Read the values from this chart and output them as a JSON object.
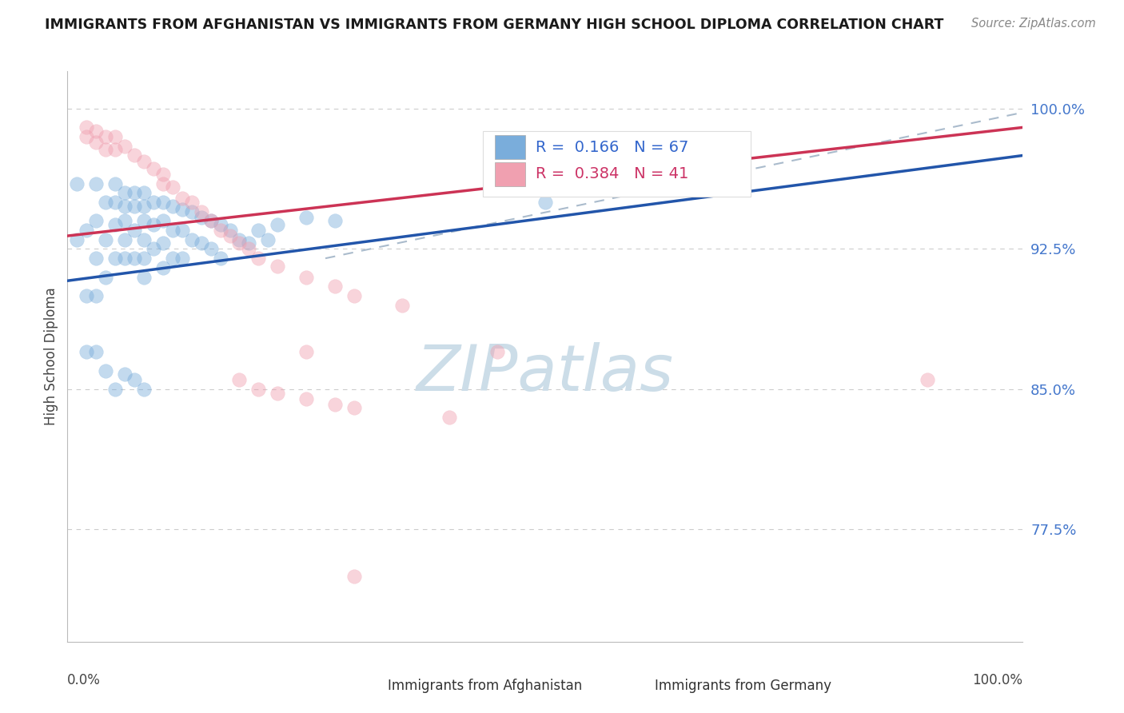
{
  "title": "IMMIGRANTS FROM AFGHANISTAN VS IMMIGRANTS FROM GERMANY HIGH SCHOOL DIPLOMA CORRELATION CHART",
  "source": "Source: ZipAtlas.com",
  "ylabel": "High School Diploma",
  "xlim": [
    0.0,
    1.0
  ],
  "ylim": [
    0.715,
    1.02
  ],
  "ytick_vals": [
    0.775,
    0.85,
    0.925,
    1.0
  ],
  "ytick_labels": [
    "77.5%",
    "85.0%",
    "92.5%",
    "100.0%"
  ],
  "legend_R_blue": "0.166",
  "legend_N_blue": "67",
  "legend_R_pink": "0.384",
  "legend_N_pink": "41",
  "blue_color": "#7aaddb",
  "pink_color": "#f0a0b0",
  "blue_line_color": "#2255aa",
  "pink_line_color": "#cc3355",
  "dash_color": "#aabbcc",
  "watermark": "ZIPatlas",
  "watermark_color": "#ccdde8",
  "blue_scatter_x": [
    0.01,
    0.01,
    0.02,
    0.02,
    0.02,
    0.03,
    0.03,
    0.03,
    0.03,
    0.04,
    0.04,
    0.04,
    0.05,
    0.05,
    0.05,
    0.05,
    0.06,
    0.06,
    0.06,
    0.06,
    0.06,
    0.07,
    0.07,
    0.07,
    0.07,
    0.08,
    0.08,
    0.08,
    0.08,
    0.08,
    0.08,
    0.09,
    0.09,
    0.09,
    0.1,
    0.1,
    0.1,
    0.1,
    0.11,
    0.11,
    0.11,
    0.12,
    0.12,
    0.12,
    0.13,
    0.13,
    0.14,
    0.14,
    0.15,
    0.15,
    0.16,
    0.16,
    0.17,
    0.18,
    0.19,
    0.2,
    0.21,
    0.22,
    0.25,
    0.28,
    0.03,
    0.04,
    0.05,
    0.06,
    0.07,
    0.08,
    0.5
  ],
  "blue_scatter_y": [
    0.93,
    0.96,
    0.935,
    0.9,
    0.87,
    0.96,
    0.94,
    0.92,
    0.9,
    0.95,
    0.93,
    0.91,
    0.96,
    0.95,
    0.938,
    0.92,
    0.955,
    0.948,
    0.94,
    0.93,
    0.92,
    0.955,
    0.948,
    0.935,
    0.92,
    0.955,
    0.948,
    0.94,
    0.93,
    0.92,
    0.91,
    0.95,
    0.938,
    0.925,
    0.95,
    0.94,
    0.928,
    0.915,
    0.948,
    0.935,
    0.92,
    0.946,
    0.935,
    0.92,
    0.945,
    0.93,
    0.942,
    0.928,
    0.94,
    0.925,
    0.938,
    0.92,
    0.935,
    0.93,
    0.928,
    0.935,
    0.93,
    0.938,
    0.942,
    0.94,
    0.87,
    0.86,
    0.85,
    0.858,
    0.855,
    0.85,
    0.95
  ],
  "pink_scatter_x": [
    0.02,
    0.02,
    0.03,
    0.03,
    0.04,
    0.04,
    0.05,
    0.05,
    0.06,
    0.07,
    0.08,
    0.09,
    0.1,
    0.1,
    0.11,
    0.12,
    0.13,
    0.14,
    0.15,
    0.16,
    0.17,
    0.18,
    0.19,
    0.2,
    0.22,
    0.25,
    0.28,
    0.3,
    0.35,
    0.18,
    0.2,
    0.22,
    0.25,
    0.28,
    0.3,
    0.4,
    0.45,
    0.7,
    0.9,
    0.25,
    0.3
  ],
  "pink_scatter_y": [
    0.99,
    0.985,
    0.988,
    0.982,
    0.985,
    0.978,
    0.985,
    0.978,
    0.98,
    0.975,
    0.972,
    0.968,
    0.965,
    0.96,
    0.958,
    0.952,
    0.95,
    0.945,
    0.94,
    0.935,
    0.932,
    0.928,
    0.925,
    0.92,
    0.916,
    0.91,
    0.905,
    0.9,
    0.895,
    0.855,
    0.85,
    0.848,
    0.845,
    0.842,
    0.84,
    0.835,
    0.87,
    0.96,
    0.855,
    0.87,
    0.75
  ],
  "blue_line_x0": 0.0,
  "blue_line_y0": 0.908,
  "blue_line_x1": 1.0,
  "blue_line_y1": 0.975,
  "pink_line_x0": 0.0,
  "pink_line_y0": 0.932,
  "pink_line_x1": 1.0,
  "pink_line_y1": 0.99,
  "dash_line_x0": 0.27,
  "dash_line_y0": 0.92,
  "dash_line_x1": 1.0,
  "dash_line_y1": 0.998
}
